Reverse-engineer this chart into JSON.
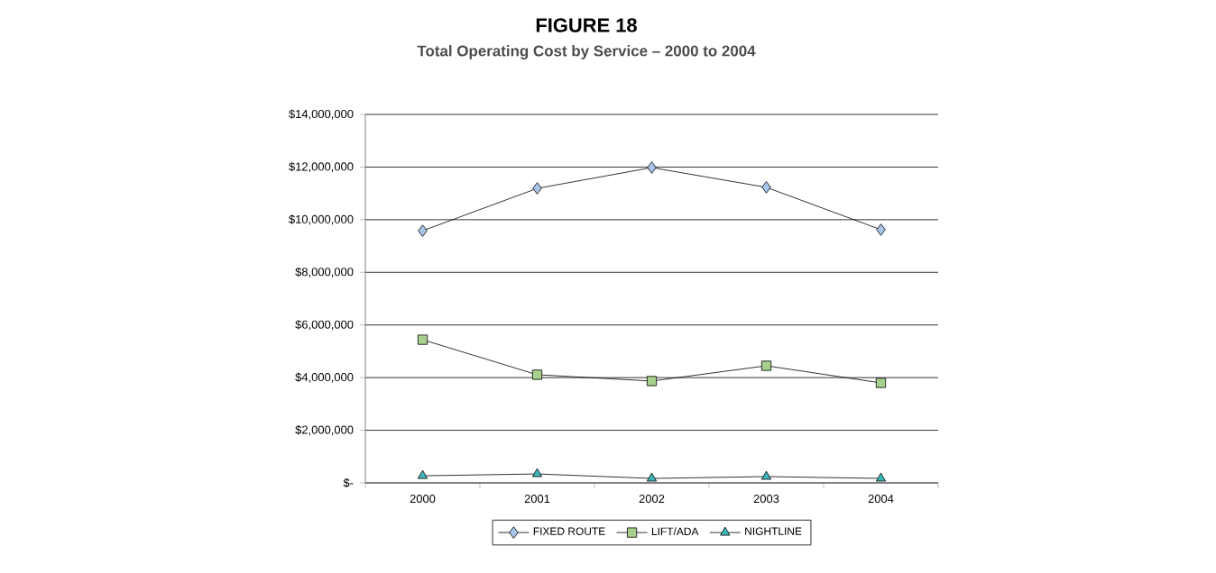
{
  "chart_data": {
    "type": "line",
    "title": "FIGURE 18",
    "subtitle": "Total Operating Cost by Service – 2000 to 2004",
    "categories": [
      "2000",
      "2001",
      "2002",
      "2003",
      "2004"
    ],
    "series": [
      {
        "name": "FIXED ROUTE",
        "color": "#a9c4e6",
        "marker": "diamond",
        "values": [
          9580000,
          11190000,
          11980000,
          11230000,
          9620000
        ]
      },
      {
        "name": "LIFT/ADA",
        "color": "#a8d08d",
        "marker": "square",
        "values": [
          5440000,
          4110000,
          3870000,
          4450000,
          3800000
        ]
      },
      {
        "name": "NIGHTLINE",
        "color": "#3fb6b8",
        "marker": "triangle",
        "values": [
          270000,
          340000,
          170000,
          240000,
          170000
        ]
      }
    ],
    "ylim": [
      0,
      14000000
    ],
    "yticks": [
      {
        "value": 0,
        "label": "$-"
      },
      {
        "value": 2000000,
        "label": "$2,000,000"
      },
      {
        "value": 4000000,
        "label": "$4,000,000"
      },
      {
        "value": 6000000,
        "label": "$6,000,000"
      },
      {
        "value": 8000000,
        "label": "$8,000,000"
      },
      {
        "value": 10000000,
        "label": "$10,000,000"
      },
      {
        "value": 12000000,
        "label": "$12,000,000"
      },
      {
        "value": 14000000,
        "label": "$14,000,000"
      }
    ],
    "grid": "y",
    "legend": "bottom",
    "line_style": "solid"
  }
}
